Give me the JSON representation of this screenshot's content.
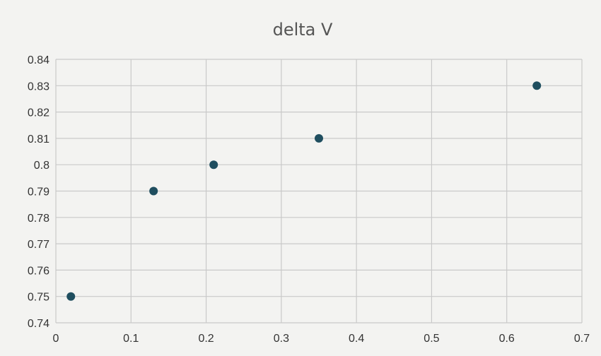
{
  "chart_data": {
    "type": "scatter",
    "title": "delta V",
    "xlabel": "",
    "ylabel": "",
    "xlim": [
      0,
      0.7
    ],
    "ylim": [
      0.74,
      0.84
    ],
    "xticks": [
      "0",
      "0.1",
      "0.2",
      "0.3",
      "0.4",
      "0.5",
      "0.6",
      "0.7"
    ],
    "yticks": [
      "0.74",
      "0.75",
      "0.76",
      "0.77",
      "0.78",
      "0.79",
      "0.8",
      "0.81",
      "0.82",
      "0.83",
      "0.84"
    ],
    "grid": true,
    "legend": "none",
    "series": [
      {
        "x": [
          0.02,
          0.13,
          0.21,
          0.35,
          0.64
        ],
        "y": [
          0.75,
          0.79,
          0.8,
          0.81,
          0.83
        ],
        "color": "#1f4e5f"
      }
    ]
  }
}
